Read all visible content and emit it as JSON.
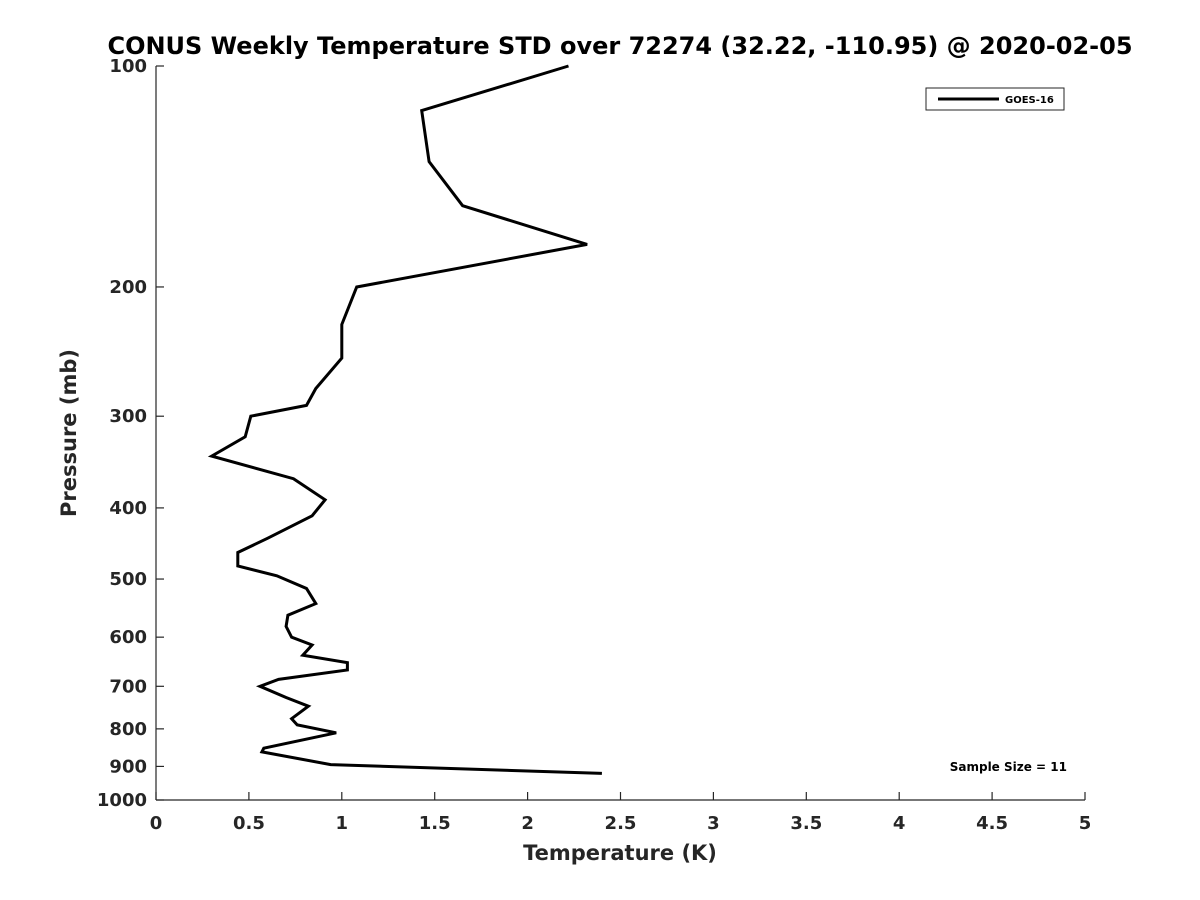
{
  "chart_data": {
    "type": "line",
    "title": "CONUS Weekly Temperature STD over 72274 (32.22, -110.95) @ 2020-02-05",
    "xlabel": "Temperature (K)",
    "ylabel": "Pressure (mb)",
    "xlim": [
      0,
      5
    ],
    "ylim": [
      1000,
      100
    ],
    "yscale": "log",
    "y_reversed": true,
    "xticks": [
      "0",
      "0.5",
      "1",
      "1.5",
      "2",
      "2.5",
      "3",
      "3.5",
      "4",
      "4.5",
      "5"
    ],
    "yticks": [
      "100",
      "200",
      "300",
      "400",
      "500",
      "600",
      "700",
      "800",
      "900",
      "1000"
    ],
    "grid": false,
    "legend": {
      "position": "top-right",
      "entries": [
        "GOES-16"
      ]
    },
    "annotations": [
      "Sample Size = 11"
    ],
    "series": [
      {
        "name": "GOES-16",
        "color": "#000000",
        "points": [
          [
            2.22,
            100
          ],
          [
            1.43,
            115
          ],
          [
            1.47,
            135
          ],
          [
            1.65,
            155
          ],
          [
            2.32,
            175
          ],
          [
            1.08,
            200
          ],
          [
            1.0,
            225
          ],
          [
            1.0,
            250
          ],
          [
            0.86,
            275
          ],
          [
            0.81,
            290
          ],
          [
            0.51,
            300
          ],
          [
            0.48,
            320
          ],
          [
            0.3,
            340
          ],
          [
            0.74,
            365
          ],
          [
            0.91,
            390
          ],
          [
            0.84,
            410
          ],
          [
            0.6,
            440
          ],
          [
            0.44,
            460
          ],
          [
            0.44,
            480
          ],
          [
            0.65,
            495
          ],
          [
            0.81,
            515
          ],
          [
            0.86,
            540
          ],
          [
            0.71,
            560
          ],
          [
            0.7,
            580
          ],
          [
            0.73,
            600
          ],
          [
            0.84,
            615
          ],
          [
            0.79,
            635
          ],
          [
            1.03,
            650
          ],
          [
            1.03,
            665
          ],
          [
            0.66,
            685
          ],
          [
            0.56,
            700
          ],
          [
            0.7,
            725
          ],
          [
            0.82,
            745
          ],
          [
            0.73,
            775
          ],
          [
            0.76,
            790
          ],
          [
            0.97,
            810
          ],
          [
            0.58,
            850
          ],
          [
            0.57,
            860
          ],
          [
            0.94,
            895
          ],
          [
            2.4,
            920
          ]
        ]
      }
    ]
  }
}
